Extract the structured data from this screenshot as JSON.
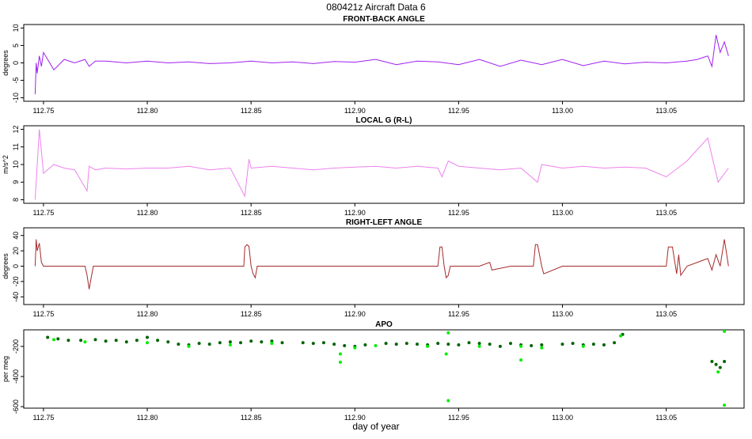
{
  "figure": {
    "title": "080421z   Aircraft Data 6",
    "xlabel": "day of year"
  },
  "chart_data": [
    {
      "type": "line",
      "title": "FRONT-BACK ANGLE",
      "ylabel": "degrees",
      "xlim": [
        112.7405,
        113.0875
      ],
      "ylim": [
        -11,
        11
      ],
      "yticks": [
        -10,
        -5,
        0,
        5,
        10
      ],
      "xticks": [
        112.75,
        112.8,
        112.85,
        112.9,
        112.95,
        113.0,
        113.05
      ],
      "xtick_labels": [
        "112.75",
        "112.80",
        "112.85",
        "112.90",
        "112.95",
        "113.00",
        "113.05"
      ],
      "color": "#a020f0",
      "series": [
        {
          "x": [
            112.746,
            112.7465,
            112.747,
            112.748,
            112.749,
            112.75,
            112.752,
            112.755,
            112.76,
            112.765,
            112.77,
            112.772,
            112.775,
            112.78,
            112.79,
            112.8,
            112.81,
            112.82,
            112.83,
            112.84,
            112.85,
            112.86,
            112.87,
            112.88,
            112.89,
            112.9,
            112.91,
            112.92,
            112.93,
            112.94,
            112.95,
            112.96,
            112.97,
            112.98,
            112.99,
            113.0,
            113.01,
            113.02,
            113.03,
            113.04,
            113.05,
            113.06,
            113.065,
            113.07,
            113.072,
            113.074,
            113.076,
            113.078,
            113.08
          ],
          "y": [
            -9,
            0,
            -3,
            2,
            -1,
            3,
            1,
            -2,
            1,
            0,
            1,
            -1,
            0.5,
            0.5,
            0,
            0.5,
            0,
            0.3,
            -0.2,
            0,
            0.5,
            0,
            0.3,
            -0.2,
            0.4,
            0.2,
            1,
            -0.5,
            0.5,
            0.3,
            -0.5,
            1,
            -1,
            0.8,
            -0.5,
            1,
            -0.8,
            0.5,
            -0.3,
            0.2,
            0,
            0.5,
            1,
            2,
            -1,
            8,
            3,
            6,
            2
          ]
        }
      ]
    },
    {
      "type": "line",
      "title": "LOCAL G (R-L)",
      "ylabel": "m/s^2",
      "xlim": [
        112.7405,
        113.0875
      ],
      "ylim": [
        7.8,
        12.2
      ],
      "yticks": [
        8,
        9,
        10,
        11,
        12
      ],
      "xticks": [
        112.75,
        112.8,
        112.85,
        112.9,
        112.95,
        113.0,
        113.05
      ],
      "xtick_labels": [
        "112.75",
        "112.80",
        "112.85",
        "112.90",
        "112.95",
        "113.00",
        "113.05"
      ],
      "color": "#ee82ee",
      "series": [
        {
          "x": [
            112.746,
            112.748,
            112.75,
            112.755,
            112.76,
            112.765,
            112.771,
            112.772,
            112.775,
            112.78,
            112.79,
            112.8,
            112.81,
            112.82,
            112.83,
            112.84,
            112.847,
            112.849,
            112.85,
            112.86,
            112.87,
            112.88,
            112.89,
            112.9,
            112.91,
            112.92,
            112.93,
            112.94,
            112.942,
            112.945,
            112.95,
            112.96,
            112.97,
            112.98,
            112.988,
            112.99,
            113.0,
            113.01,
            113.02,
            113.03,
            113.04,
            113.05,
            113.06,
            113.07,
            113.075,
            113.08
          ],
          "y": [
            8,
            12,
            9.5,
            10,
            9.8,
            9.7,
            8.5,
            9.9,
            9.7,
            9.8,
            9.75,
            9.8,
            9.8,
            9.9,
            9.7,
            9.8,
            8.2,
            10.3,
            9.8,
            9.9,
            9.8,
            9.7,
            9.8,
            9.85,
            9.9,
            9.8,
            9.9,
            9.8,
            9.3,
            10.2,
            9.9,
            9.8,
            9.7,
            9.8,
            9,
            10,
            9.8,
            9.9,
            9.8,
            9.85,
            9.8,
            9.3,
            10.2,
            11.5,
            9,
            9.8
          ]
        }
      ]
    },
    {
      "type": "line",
      "title": "RIGHT-LEFT ANGLE",
      "ylabel": "degrees",
      "xlim": [
        112.7405,
        113.0875
      ],
      "ylim": [
        -50,
        50
      ],
      "yticks": [
        -40,
        -20,
        0,
        20,
        40
      ],
      "xticks": [
        112.75,
        112.8,
        112.85,
        112.9,
        112.95,
        113.0,
        113.05
      ],
      "xtick_labels": [
        "112.75",
        "112.80",
        "112.85",
        "112.90",
        "112.95",
        "113.00",
        "113.05"
      ],
      "color": "#a52a2a",
      "series": [
        {
          "x": [
            112.746,
            112.7465,
            112.747,
            112.748,
            112.749,
            112.75,
            112.77,
            112.771,
            112.772,
            112.773,
            112.774,
            112.8,
            112.84,
            112.8465,
            112.847,
            112.848,
            112.849,
            112.85,
            112.851,
            112.852,
            112.853,
            112.9,
            112.94,
            112.941,
            112.942,
            112.943,
            112.944,
            112.945,
            112.946,
            112.96,
            112.965,
            112.966,
            112.975,
            112.98,
            112.986,
            112.987,
            112.988,
            112.99,
            112.991,
            113.0,
            113.05,
            113.051,
            113.053,
            113.055,
            113.056,
            113.057,
            113.06,
            113.07,
            113.072,
            113.074,
            113.076,
            113.078,
            113.08
          ],
          "y": [
            0,
            35,
            20,
            30,
            5,
            0,
            0,
            -12,
            -30,
            -15,
            0,
            0,
            0,
            0,
            25,
            28,
            26,
            0,
            -10,
            -15,
            0,
            0,
            0,
            25,
            25,
            0,
            -15,
            -12,
            0,
            0,
            5,
            -5,
            0,
            0,
            0,
            28,
            28,
            0,
            -10,
            0,
            0,
            25,
            25,
            -10,
            15,
            -12,
            0,
            10,
            -5,
            15,
            0,
            35,
            0
          ]
        }
      ]
    },
    {
      "type": "scatter",
      "title": "APO",
      "ylabel": "per meg",
      "xlim": [
        112.7405,
        113.0875
      ],
      "ylim": [
        -610,
        -90
      ],
      "yticks": [
        -600,
        -400,
        -200
      ],
      "xticks": [
        112.75,
        112.8,
        112.85,
        112.9,
        112.95,
        113.0,
        113.05
      ],
      "xtick_labels": [
        "112.75",
        "112.80",
        "112.85",
        "112.90",
        "112.95",
        "113.00",
        "113.05"
      ],
      "series": [
        {
          "name": "",
          "color": "#006400",
          "x": [
            112.752,
            112.757,
            112.762,
            112.768,
            112.775,
            112.78,
            112.785,
            112.79,
            112.795,
            112.8,
            112.805,
            112.81,
            112.815,
            112.82,
            112.825,
            112.83,
            112.835,
            112.84,
            112.845,
            112.85,
            112.855,
            112.86,
            112.865,
            112.875,
            112.88,
            112.885,
            112.89,
            112.895,
            112.9,
            112.905,
            112.915,
            112.92,
            112.925,
            112.93,
            112.935,
            112.94,
            112.945,
            112.95,
            112.955,
            112.96,
            112.965,
            112.97,
            112.975,
            112.98,
            112.985,
            112.99,
            113.0,
            113.005,
            113.01,
            113.015,
            113.02,
            113.025,
            113.029,
            113.072,
            113.074,
            113.076,
            113.078
          ],
          "y": [
            -140,
            -150,
            -160,
            -160,
            -155,
            -165,
            -160,
            -170,
            -160,
            -140,
            -160,
            -170,
            -185,
            -190,
            -180,
            -185,
            -175,
            -170,
            -175,
            -165,
            -170,
            -165,
            -175,
            -175,
            -180,
            -175,
            -185,
            -195,
            -200,
            -190,
            -180,
            -185,
            -180,
            -185,
            -190,
            -180,
            -185,
            -190,
            -175,
            -180,
            -185,
            -200,
            -180,
            -190,
            -195,
            -190,
            -185,
            -180,
            -190,
            -185,
            -190,
            -175,
            -120,
            -300,
            -320,
            -340,
            -300
          ]
        },
        {
          "name": "",
          "color": "#00ee00",
          "x": [
            112.755,
            112.77,
            112.8,
            112.82,
            112.84,
            112.86,
            112.893,
            112.893,
            112.9,
            112.91,
            112.935,
            112.945,
            112.945,
            112.944,
            112.96,
            112.98,
            112.98,
            112.99,
            113.01,
            113.028,
            113.075,
            113.078,
            113.078
          ],
          "y": [
            -155,
            -170,
            -175,
            -200,
            -190,
            -180,
            -305,
            -250,
            -210,
            -195,
            -200,
            -110,
            -560,
            -250,
            -200,
            -200,
            -290,
            -210,
            -200,
            -130,
            -370,
            -100,
            -590
          ]
        }
      ]
    }
  ]
}
